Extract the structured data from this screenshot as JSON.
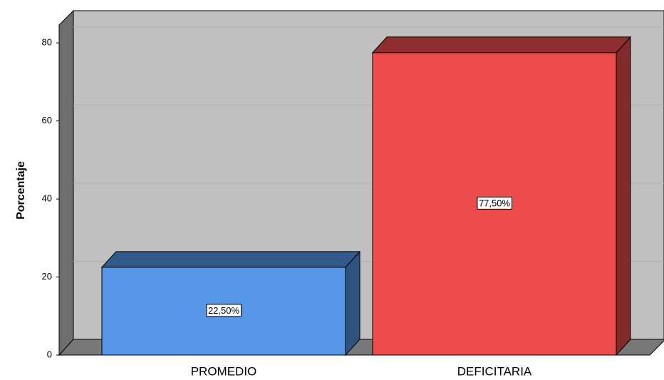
{
  "chart_data": {
    "type": "bar3d",
    "y_label": "Porcentaje",
    "categories": [
      "PROMEDIO",
      "DEFICITARIA"
    ],
    "values": [
      22.5,
      77.5
    ],
    "value_labels": [
      "22,50%",
      "77,50%"
    ],
    "colors": [
      "#5596e6",
      "#ec4c4c"
    ],
    "ylim": [
      0,
      84.6
    ],
    "yticks": [
      0,
      20,
      40,
      60,
      80
    ],
    "grid": true
  }
}
